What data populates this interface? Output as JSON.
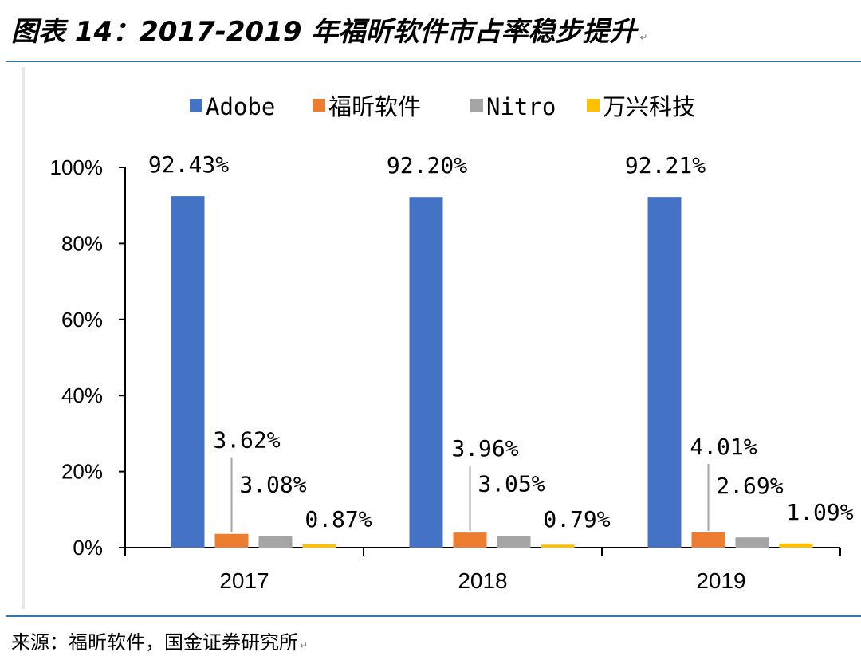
{
  "header": {
    "title": "图表 14：2017-2019 年福昕软件市占率稳步提升"
  },
  "footer": {
    "source": "来源：福昕软件，国金证券研究所"
  },
  "chart_data": {
    "type": "bar",
    "categories": [
      "2017",
      "2018",
      "2019"
    ],
    "series": [
      {
        "name": "Adobe",
        "values": [
          92.43,
          92.2,
          92.21
        ],
        "labels": [
          "92.43%",
          "92.20%",
          "92.21%"
        ],
        "color": "#4472c4"
      },
      {
        "name": "福昕软件",
        "values": [
          3.62,
          3.96,
          4.01
        ],
        "labels": [
          "3.62%",
          "3.96%",
          "4.01%"
        ],
        "color": "#ed7d31"
      },
      {
        "name": "Nitro",
        "values": [
          3.08,
          3.05,
          2.69
        ],
        "labels": [
          "3.08%",
          "3.05%",
          "2.69%"
        ],
        "color": "#a5a5a5"
      },
      {
        "name": "万兴科技",
        "values": [
          0.87,
          0.79,
          1.09
        ],
        "labels": [
          "0.87%",
          "0.79%",
          "1.09%"
        ],
        "color": "#ffc000"
      }
    ],
    "ylim": [
      0,
      100
    ],
    "yticks": [
      "0%",
      "20%",
      "40%",
      "60%",
      "80%",
      "100%"
    ],
    "grid": false,
    "legend_position": "top"
  }
}
